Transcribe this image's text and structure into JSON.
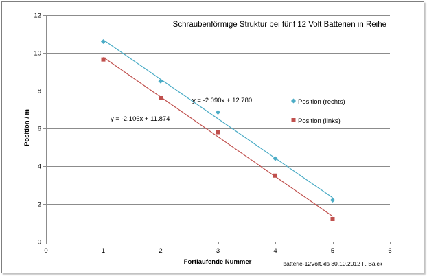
{
  "chart_data": {
    "type": "scatter",
    "title": "Schraubenförmige Struktur bei  fünf 12 Volt Batterien in Reihe",
    "xlabel": "Fortlaufende Nummer",
    "ylabel": "Position / m",
    "xlim": [
      0,
      6
    ],
    "ylim": [
      0,
      12
    ],
    "x_ticks": [
      0,
      1,
      2,
      3,
      4,
      5,
      6
    ],
    "y_ticks": [
      0,
      2,
      4,
      6,
      8,
      10,
      12
    ],
    "grid": "horizontal",
    "legend_position": "right",
    "series": [
      {
        "name": "Position (rechts)",
        "color": "#4bacc6",
        "marker": "diamond",
        "x": [
          1,
          2,
          3,
          4,
          5
        ],
        "y": [
          10.6,
          8.5,
          6.85,
          4.4,
          2.2
        ],
        "trendline": {
          "slope": -2.09,
          "intercept": 12.78,
          "equation": "y = -2.090x + 12.780"
        }
      },
      {
        "name": "Position (links)",
        "color": "#c0504d",
        "marker": "square",
        "x": [
          1,
          2,
          3,
          4,
          5
        ],
        "y": [
          9.65,
          7.6,
          5.8,
          3.5,
          1.2
        ],
        "trendline": {
          "slope": -2.106,
          "intercept": 11.874,
          "equation": "y = -2.106x + 11.874"
        }
      }
    ],
    "footnote": "batterie-12Volt.xls  30.10.2012  F. Balck"
  }
}
